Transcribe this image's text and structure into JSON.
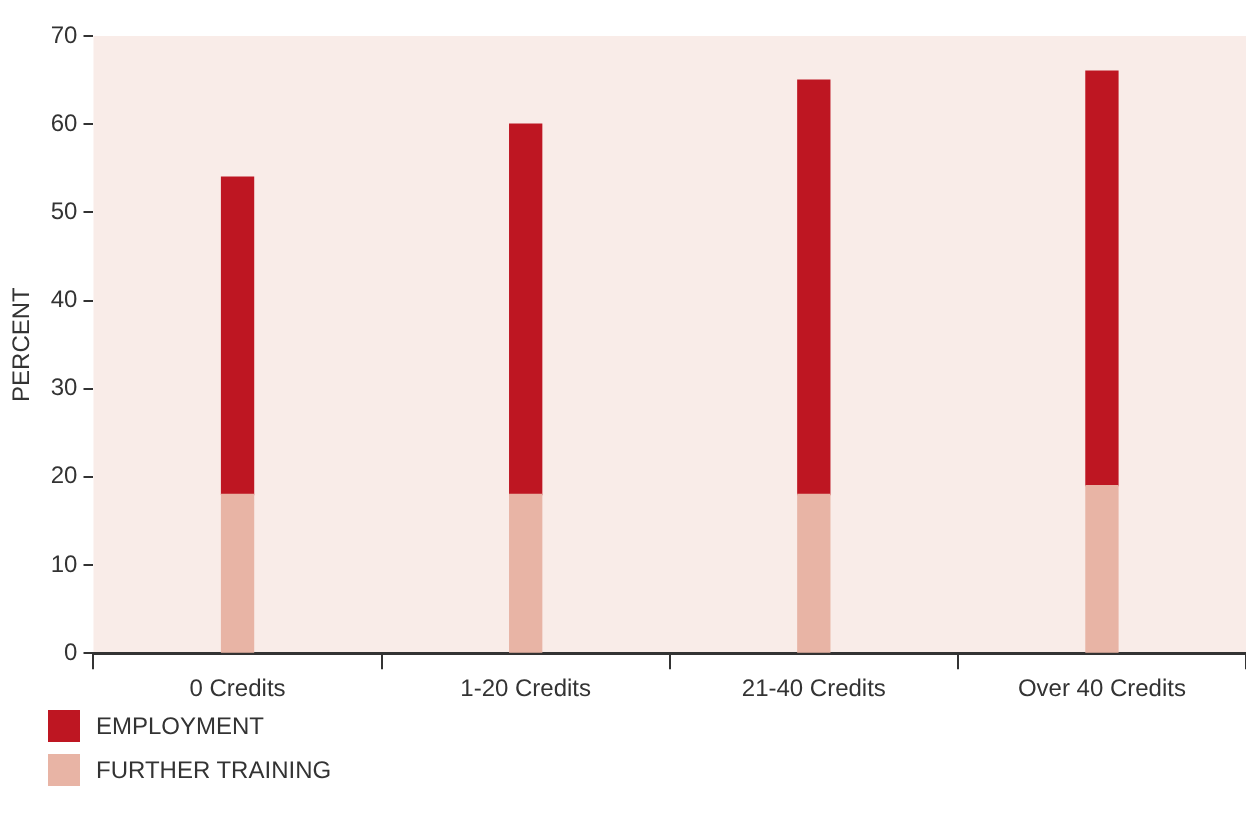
{
  "chart_data": {
    "type": "bar",
    "stacked": true,
    "ylabel": "PERCENT",
    "categories": [
      "0 Credits",
      "1-20 Credits",
      "21-40 Credits",
      "Over 40 Credits"
    ],
    "series": [
      {
        "name": "FURTHER TRAINING",
        "color": "#e8b4a5",
        "values": [
          18,
          18,
          18,
          19
        ]
      },
      {
        "name": "EMPLOYMENT",
        "color": "#be1622",
        "values": [
          36,
          42,
          47,
          47
        ]
      }
    ],
    "ylim": [
      0,
      70
    ],
    "yticks": [
      0,
      10,
      20,
      30,
      40,
      50,
      60,
      70
    ],
    "grid": false,
    "legend": "bottom left"
  }
}
